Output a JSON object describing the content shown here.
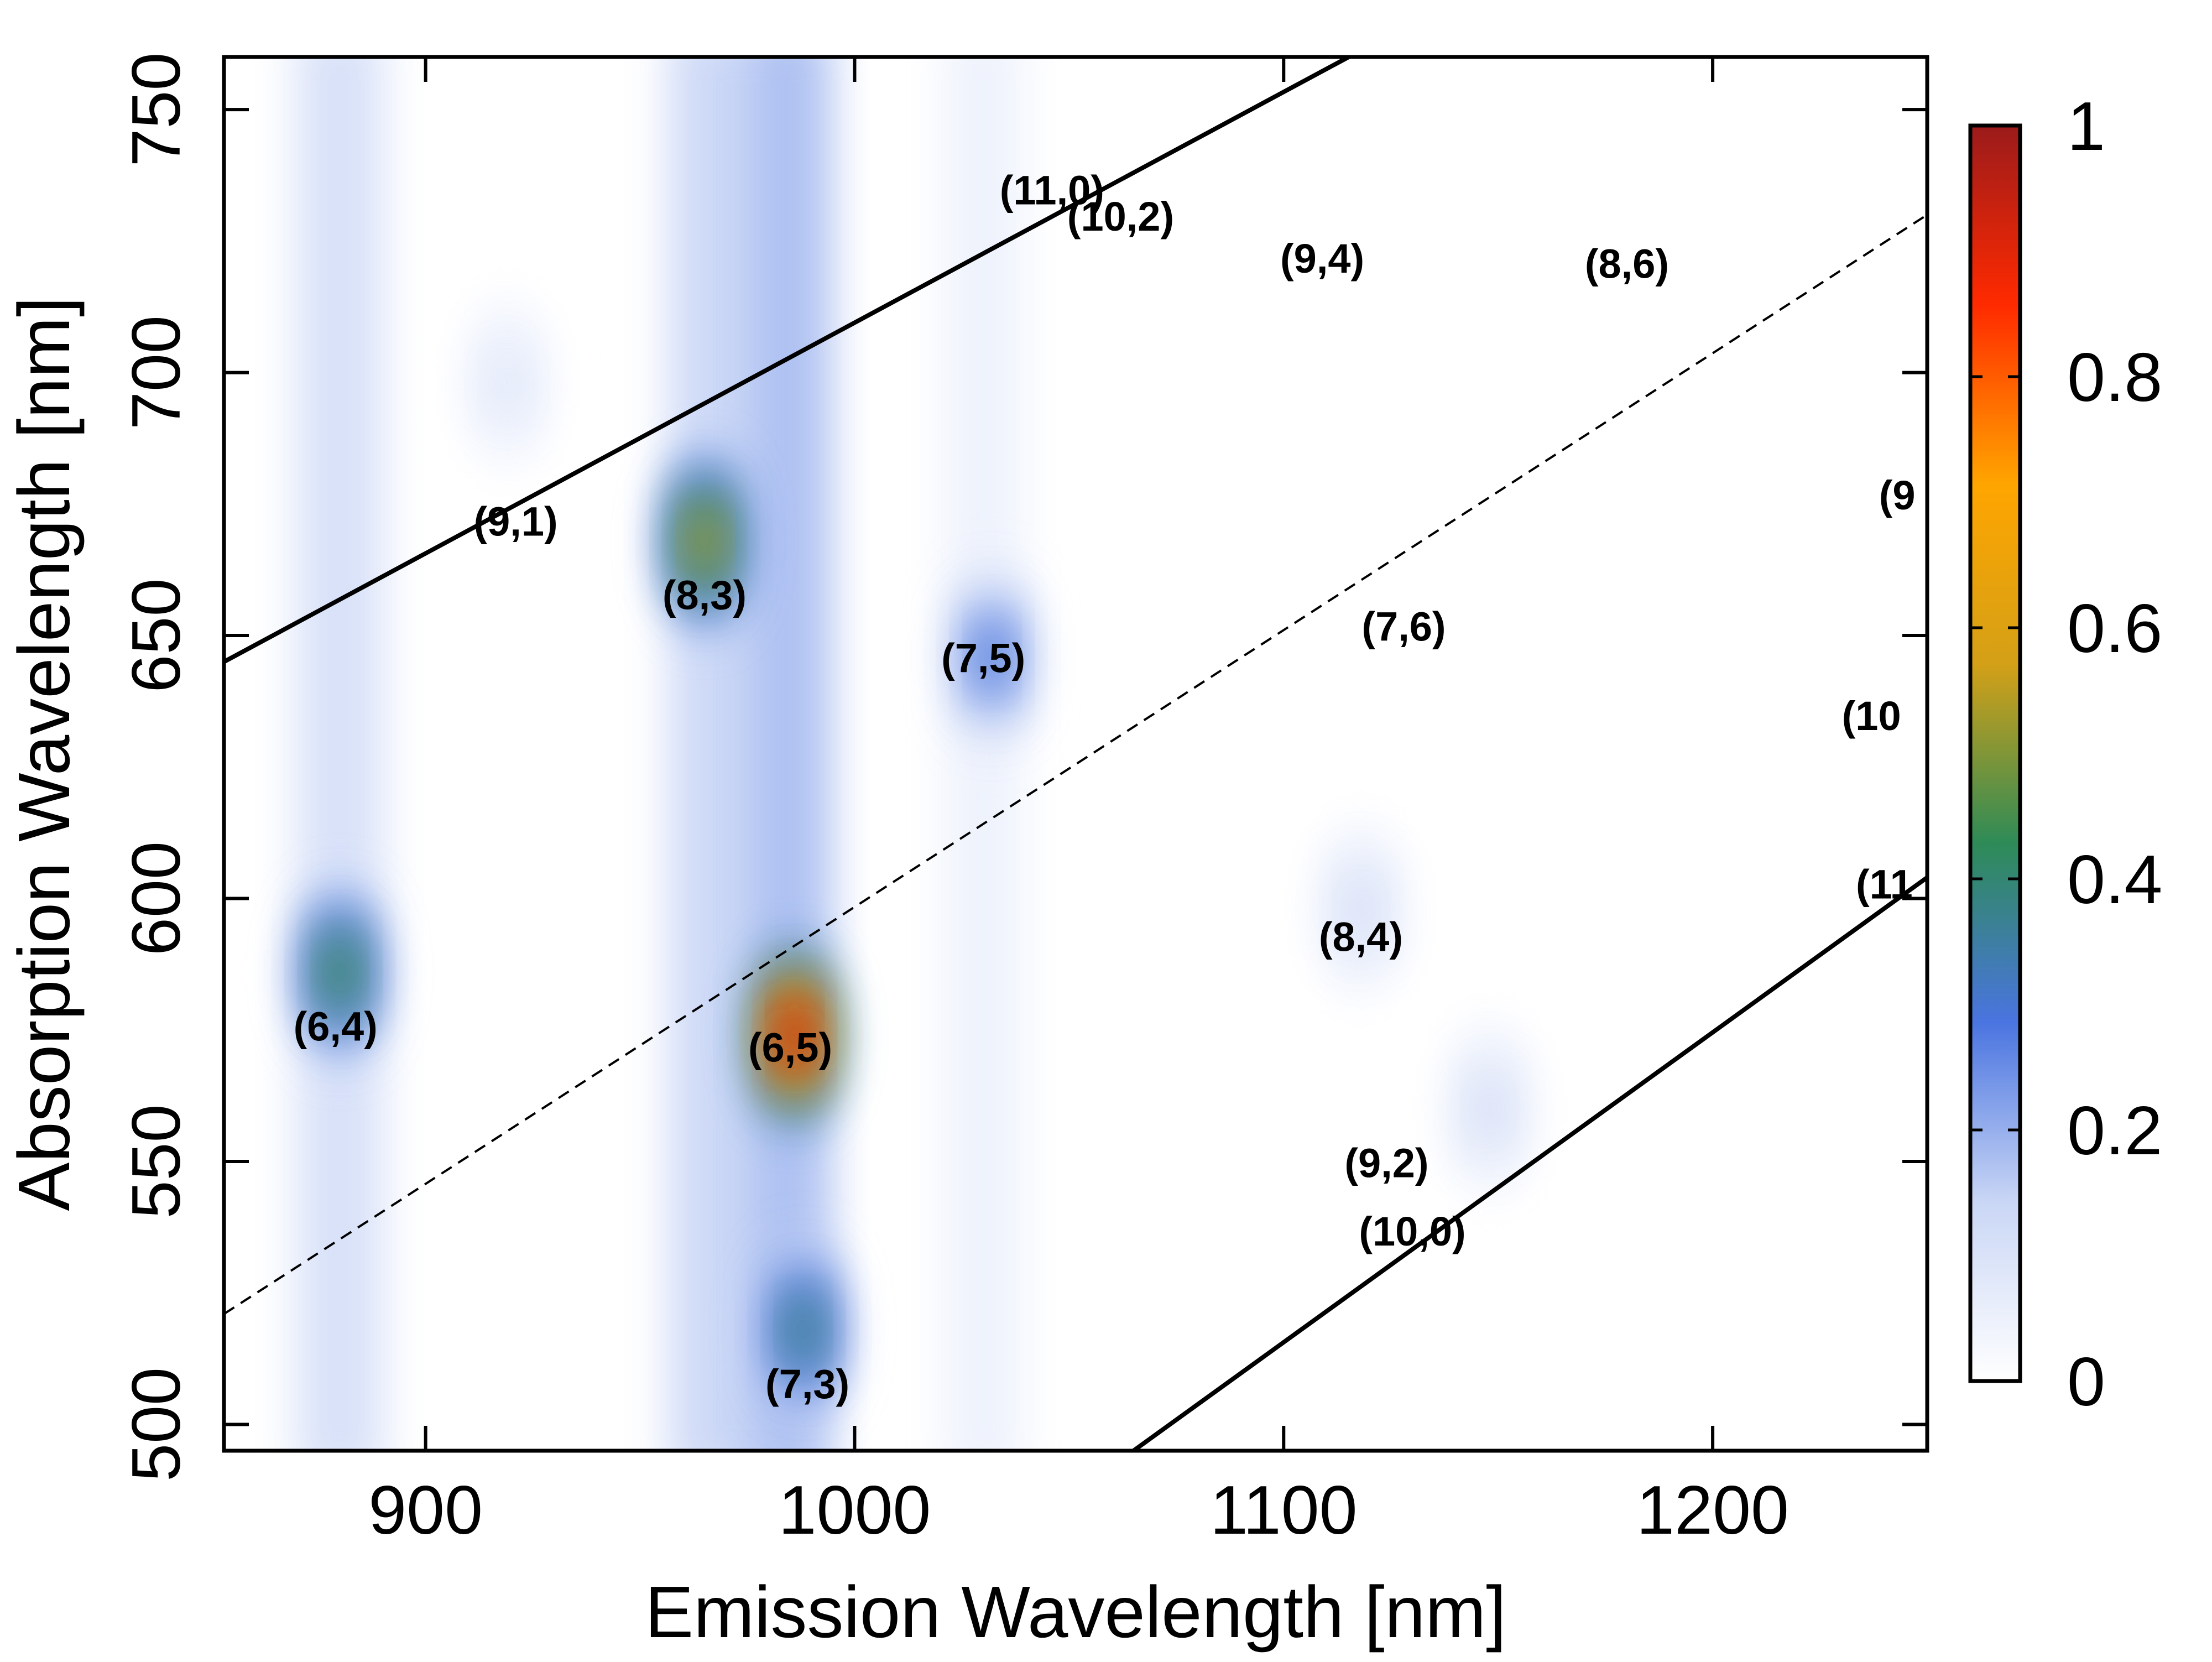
{
  "chart_data": {
    "type": "heatmap",
    "title": "",
    "xlabel": "Emission Wavelength [nm]",
    "ylabel": "Absorption Wavelength [nm]",
    "xlim": [
      853,
      1250
    ],
    "ylim": [
      495,
      760
    ],
    "x_ticks": [
      "900",
      "1000",
      "1100",
      "1200"
    ],
    "y_ticks": [
      "500",
      "550",
      "600",
      "650",
      "700",
      "750"
    ],
    "colorbar": {
      "range": [
        0,
        1
      ],
      "ticks": [
        "0",
        "0.2",
        "0.4",
        "0.6",
        "0.8",
        "1"
      ],
      "colors": [
        "#ffffff",
        "#c9d6f5",
        "#4a74e0",
        "#2e8b57",
        "#d4a017",
        "#ffa500",
        "#ff2a00",
        "#9b1b1b"
      ]
    },
    "colors": {
      "axis": "#000000",
      "peak_low": "#6a8ee6",
      "peak_high": "#ff1a00"
    },
    "peaks": [
      {
        "label": "(6,5)",
        "x": 986,
        "y": 574,
        "intensity": 1.0
      },
      {
        "label": "(8,3)",
        "x": 965,
        "y": 668,
        "intensity": 0.55
      },
      {
        "label": "(6,4)",
        "x": 880,
        "y": 586,
        "intensity": 0.42
      },
      {
        "label": "(7,3)",
        "x": 988,
        "y": 518,
        "intensity": 0.35
      },
      {
        "label": "(7,5)",
        "x": 1032,
        "y": 646,
        "intensity": 0.22
      },
      {
        "label": "(8,4)",
        "x": 1118,
        "y": 598,
        "intensity": 0.08
      },
      {
        "label": "(9,2)",
        "x": 1148,
        "y": 560,
        "intensity": 0.08
      },
      {
        "label": "(9,1)",
        "x": 919,
        "y": 698,
        "intensity": 0.06
      }
    ],
    "annotations": [
      {
        "text": "(11,0)",
        "x": 1046,
        "y": 732
      },
      {
        "text": "(10,2)",
        "x": 1062,
        "y": 727
      },
      {
        "text": "(9,4)",
        "x": 1109,
        "y": 719
      },
      {
        "text": "(8,6)",
        "x": 1180,
        "y": 718
      },
      {
        "text": "(9,1)",
        "x": 921,
        "y": 669
      },
      {
        "text": "(8,3)",
        "x": 965,
        "y": 655
      },
      {
        "text": "(7,5)",
        "x": 1030,
        "y": 643
      },
      {
        "text": "(7,6)",
        "x": 1128,
        "y": 649
      },
      {
        "text": "(8,4)",
        "x": 1118,
        "y": 590
      },
      {
        "text": "(6,4)",
        "x": 879,
        "y": 573
      },
      {
        "text": "(6,5)",
        "x": 985,
        "y": 569
      },
      {
        "text": "(9,2)",
        "x": 1124,
        "y": 547
      },
      {
        "text": "(10,0)",
        "x": 1130,
        "y": 534
      },
      {
        "text": "(7,3)",
        "x": 989,
        "y": 505
      },
      {
        "text": "(9",
        "x": 1243,
        "y": 674
      },
      {
        "text": "(10",
        "x": 1237,
        "y": 632
      },
      {
        "text": "(11",
        "x": 1240,
        "y": 600
      }
    ],
    "lines": [
      {
        "style": "solid",
        "points": [
          [
            853,
            645
          ],
          [
            1122,
            763
          ]
        ]
      },
      {
        "style": "dashed",
        "points": [
          [
            853,
            521
          ],
          [
            1250,
            730
          ]
        ]
      },
      {
        "style": "solid",
        "points": [
          [
            1065,
            495
          ],
          [
            1250,
            604
          ]
        ]
      }
    ]
  }
}
